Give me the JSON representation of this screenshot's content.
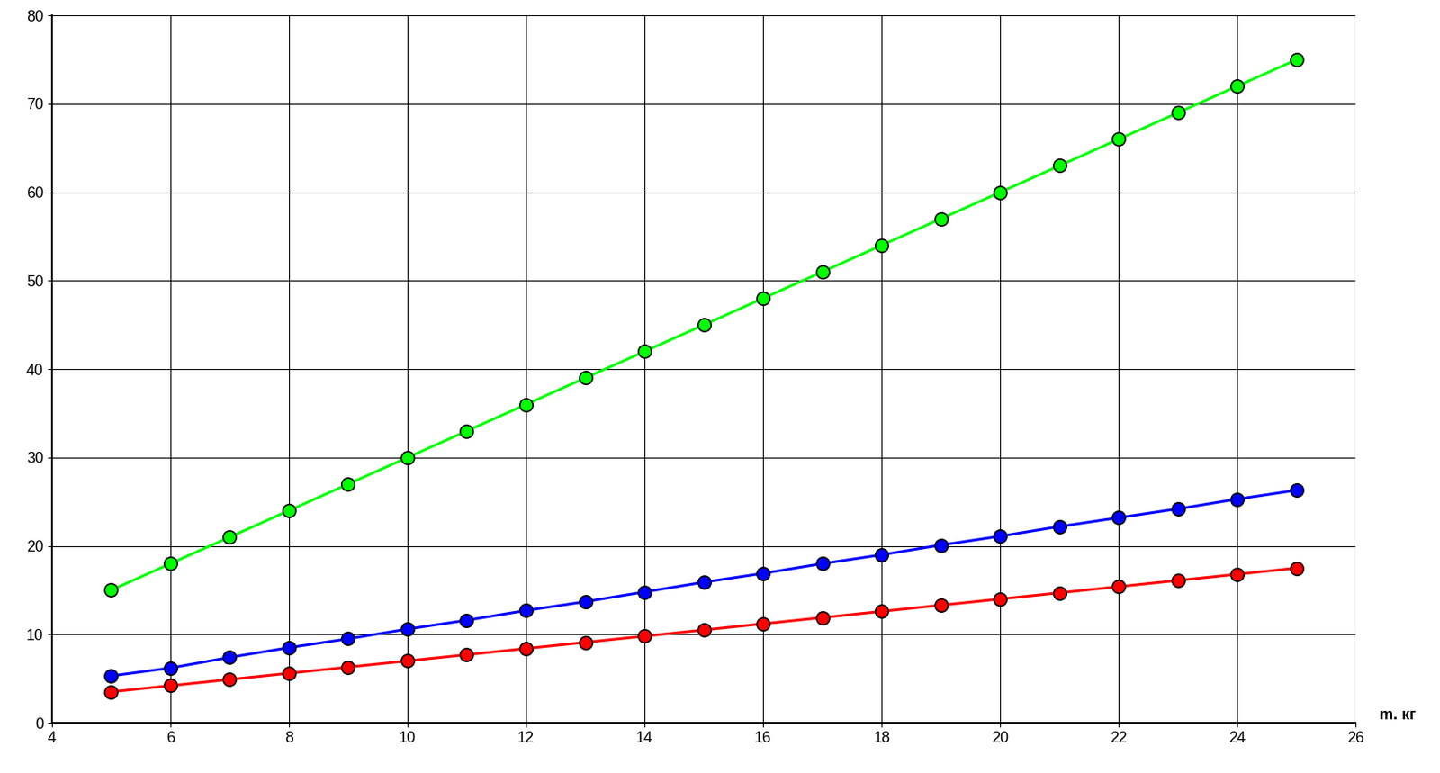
{
  "chart_data": {
    "type": "line",
    "x_label": "m. кг",
    "x": [
      5,
      6,
      7,
      8,
      9,
      10,
      11,
      12,
      13,
      14,
      15,
      16,
      17,
      18,
      19,
      20,
      21,
      22,
      23,
      24,
      25
    ],
    "series": [
      {
        "color": "#00ff00",
        "marker": "circle",
        "values": [
          15,
          18,
          21,
          24,
          27,
          30,
          33,
          36,
          39,
          42,
          45,
          48,
          51,
          54,
          57,
          60,
          63,
          66,
          69,
          72,
          75
        ]
      },
      {
        "color": "#0000ff",
        "marker": "circle",
        "values": [
          5.3,
          6.2,
          7.4,
          8.5,
          9.5,
          10.6,
          11.6,
          12.7,
          13.7,
          14.8,
          15.9,
          16.9,
          18.0,
          19.0,
          20.1,
          21.1,
          22.2,
          23.2,
          24.2,
          25.3,
          26.3
        ]
      },
      {
        "color": "#ff0000",
        "marker": "circle",
        "values": [
          3.5,
          4.2,
          4.9,
          5.6,
          6.3,
          7.0,
          7.7,
          8.4,
          9.1,
          9.8,
          10.5,
          11.2,
          11.9,
          12.6,
          13.3,
          14.0,
          14.7,
          15.4,
          16.1,
          16.8,
          17.5
        ]
      }
    ],
    "xlim": [
      4,
      26
    ],
    "xticks": [
      4,
      6,
      8,
      10,
      12,
      14,
      16,
      18,
      20,
      22,
      24,
      26
    ],
    "ylim": [
      0,
      80
    ],
    "yticks": [
      0,
      10,
      20,
      30,
      40,
      50,
      60,
      70,
      80
    ],
    "grid": true
  }
}
